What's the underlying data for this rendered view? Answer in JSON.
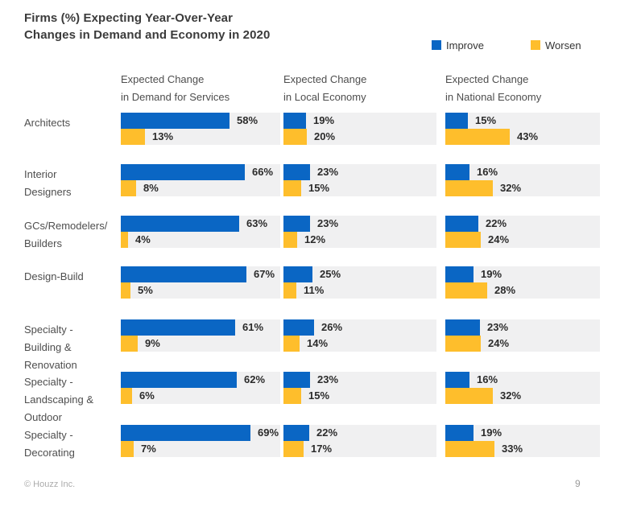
{
  "page": {
    "title_line1": "Firms (%) Expecting Year-Over-Year",
    "title_line2": "Changes in Demand and Economy in 2020",
    "footer_copyright": "© Houzz Inc.",
    "footer_page_number": "9"
  },
  "legend": {
    "improve": {
      "label": "Improve",
      "color": "#0a66c4"
    },
    "worsen": {
      "label": "Worsen",
      "color": "#febe2c"
    }
  },
  "colors": {
    "improve_bar": "#0a66c4",
    "worsen_bar": "#febe2c",
    "track_background": "#f0f0f1"
  },
  "unit": "%",
  "columns": [
    {
      "header_line1": "Expected Change",
      "header_line2": "in Demand for Services"
    },
    {
      "header_line1": "Expected Change",
      "header_line2": "in Local Economy"
    },
    {
      "header_line1": "Expected Change",
      "header_line2": "in National Economy"
    }
  ],
  "rows": [
    {
      "label_lines": [
        "Architects"
      ],
      "values": [
        [
          58,
          13
        ],
        [
          19,
          20
        ],
        [
          15,
          43
        ]
      ]
    },
    {
      "label_lines": [
        "Interior",
        "Designers"
      ],
      "values": [
        [
          66,
          8
        ],
        [
          23,
          15
        ],
        [
          16,
          32
        ]
      ]
    },
    {
      "label_lines": [
        "GCs/Remodelers/",
        "Builders"
      ],
      "values": [
        [
          63,
          4
        ],
        [
          23,
          12
        ],
        [
          22,
          24
        ]
      ]
    },
    {
      "label_lines": [
        "Design-Build"
      ],
      "values": [
        [
          67,
          5
        ],
        [
          25,
          11
        ],
        [
          19,
          28
        ]
      ]
    },
    {
      "label_lines": [
        "Specialty -",
        "Building &",
        "Renovation"
      ],
      "values": [
        [
          61,
          9
        ],
        [
          26,
          14
        ],
        [
          23,
          24
        ]
      ]
    },
    {
      "label_lines": [
        "Specialty -",
        "Landscaping &",
        "Outdoor"
      ],
      "values": [
        [
          62,
          6
        ],
        [
          23,
          15
        ],
        [
          16,
          32
        ]
      ]
    },
    {
      "label_lines": [
        "Specialty -",
        "Decorating"
      ],
      "values": [
        [
          69,
          7
        ],
        [
          22,
          17
        ],
        [
          19,
          33
        ]
      ]
    }
  ],
  "chart_data": {
    "type": "bar",
    "orientation": "horizontal",
    "title": "Firms (%) Expecting Year-Over-Year Changes in Demand and Economy in 2020",
    "unit": "%",
    "legend_position": "top-right",
    "legend_entries": [
      "Improve",
      "Worsen"
    ],
    "categories": [
      "Architects",
      "Interior Designers",
      "GCs/Remodelers/Builders",
      "Design-Build",
      "Specialty - Building & Renovation",
      "Specialty - Landscaping & Outdoor",
      "Specialty - Decorating"
    ],
    "groups": [
      {
        "name": "Expected Change in Demand for Services",
        "series": [
          {
            "name": "Improve",
            "values": [
              58,
              66,
              63,
              67,
              61,
              62,
              69
            ]
          },
          {
            "name": "Worsen",
            "values": [
              13,
              8,
              4,
              5,
              9,
              6,
              7
            ]
          }
        ]
      },
      {
        "name": "Expected Change in Local Economy",
        "series": [
          {
            "name": "Improve",
            "values": [
              19,
              23,
              23,
              25,
              26,
              23,
              22
            ]
          },
          {
            "name": "Worsen",
            "values": [
              20,
              15,
              12,
              11,
              14,
              15,
              17
            ]
          }
        ]
      },
      {
        "name": "Expected Change in National Economy",
        "series": [
          {
            "name": "Improve",
            "values": [
              15,
              16,
              22,
              19,
              23,
              16,
              19
            ]
          },
          {
            "name": "Worsen",
            "values": [
              43,
              32,
              24,
              28,
              24,
              32,
              33
            ]
          }
        ]
      }
    ],
    "footer": "© Houzz Inc.",
    "page_number": "9"
  }
}
